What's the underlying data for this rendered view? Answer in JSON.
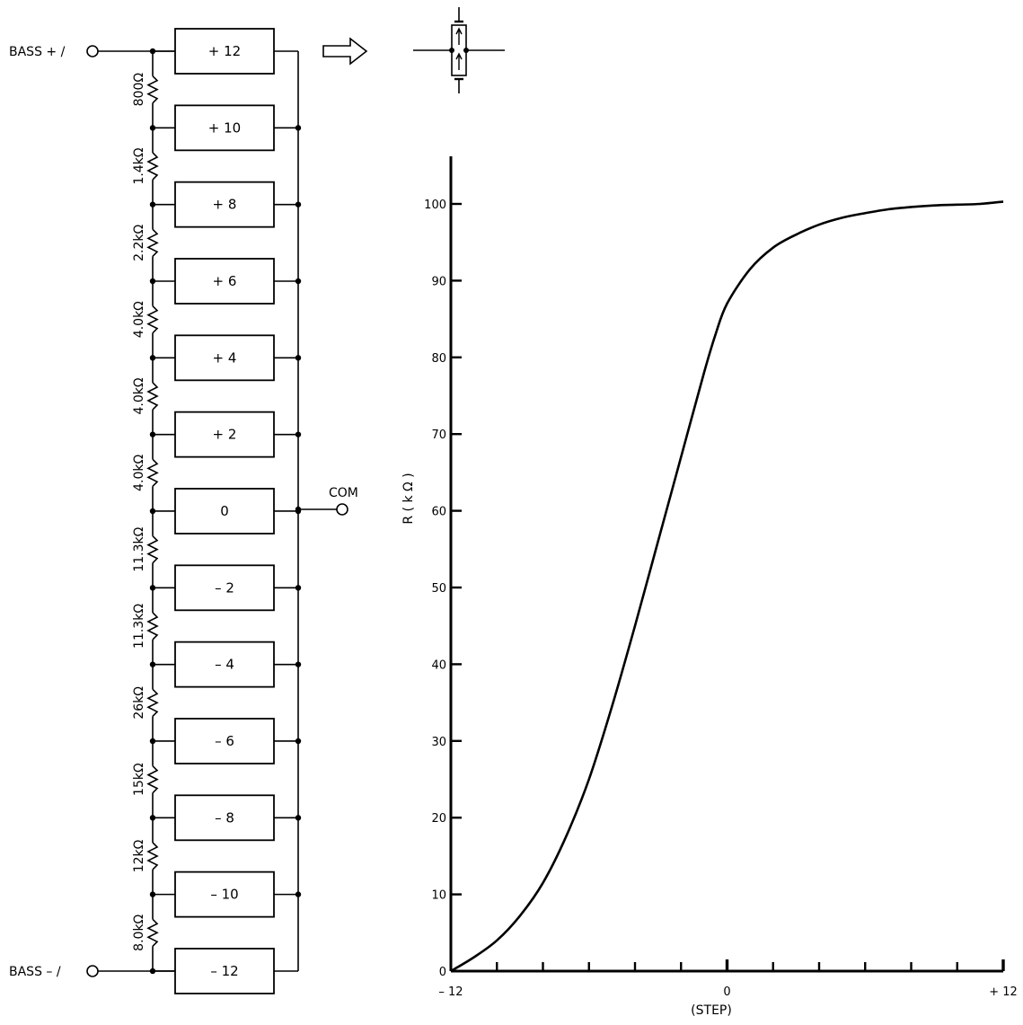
{
  "circuit": {
    "terminal_top": "BASS  + /",
    "terminal_bottom": "BASS  – /",
    "common_label": "COM",
    "steps": [
      "+ 12",
      "+ 10",
      "+ 8",
      "+ 6",
      "+ 4",
      "+ 2",
      "0",
      "– 2",
      "– 4",
      "– 6",
      "– 8",
      "– 10",
      "– 12"
    ],
    "resistors": [
      "800Ω",
      "1.4kΩ",
      "2.2kΩ",
      "4.0kΩ",
      "4.0kΩ",
      "4.0kΩ",
      "11.3kΩ",
      "11.3kΩ",
      "26kΩ",
      "15kΩ",
      "12kΩ",
      "8.0kΩ"
    ],
    "icons": {
      "arrow": "hollow-right-arrow-icon",
      "switch": "switch-contact-icon"
    }
  },
  "chart_data": {
    "type": "line",
    "title": "",
    "ylabel": "R ( k Ω )",
    "xlabel": "(STEP)",
    "xlim": [
      -12,
      12
    ],
    "ylim": [
      0,
      100
    ],
    "x_tick_labels": [
      {
        "x": -12,
        "label": "– 12"
      },
      {
        "x": 0,
        "label": "0"
      },
      {
        "x": 12,
        "label": "+ 12"
      }
    ],
    "x_ticks": [
      -12,
      -10,
      -8,
      -6,
      -4,
      -2,
      0,
      2,
      4,
      6,
      8,
      10,
      12
    ],
    "y_ticks": [
      0,
      10,
      20,
      30,
      40,
      50,
      60,
      70,
      80,
      90,
      100
    ],
    "series": [
      {
        "x": [
          -12,
          -11,
          -10,
          -9,
          -8,
          -7,
          -6,
          -5,
          -4,
          -3,
          -2,
          -1,
          -0.5,
          0,
          1,
          2,
          3,
          4,
          5,
          6,
          7,
          8,
          9,
          10,
          11,
          12
        ],
        "y": [
          0,
          1.8,
          4.0,
          7.2,
          11.5,
          17.5,
          25.0,
          34.5,
          45.0,
          56.0,
          67.0,
          78.0,
          83.0,
          87.0,
          91.5,
          94.3,
          96.0,
          97.3,
          98.2,
          98.8,
          99.3,
          99.6,
          99.8,
          99.9,
          100.0,
          100.3
        ]
      }
    ]
  }
}
